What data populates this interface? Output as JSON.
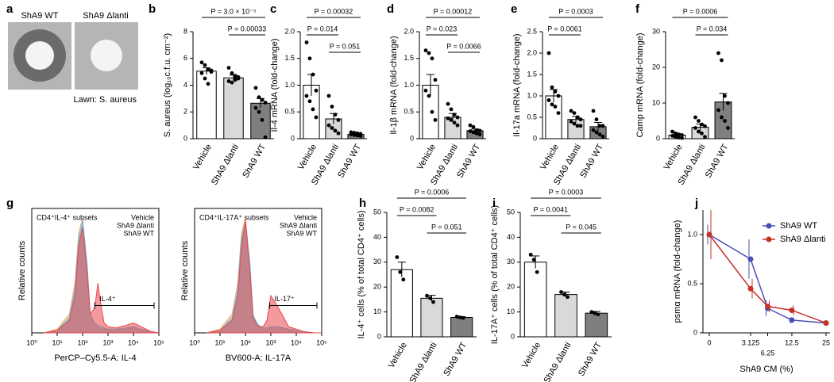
{
  "panel_a": {
    "panel": "a",
    "images": [
      "ShA9 WT",
      "ShA9 Δlanti"
    ],
    "caption": "Lawn: S. aureus"
  },
  "chart_data": [
    {
      "type": "bar",
      "panel": "b",
      "ylabel": "S. aureus (log₁₀c.f.u. cm⁻²)",
      "categories": [
        "Vehicle",
        "ShA9 Δlanti",
        "ShA9 WT"
      ],
      "values": [
        5.05,
        4.55,
        2.65
      ],
      "errors": [
        0.25,
        0.2,
        0.35
      ],
      "points": [
        [
          5.7,
          5.5,
          5.2,
          5.0,
          4.9,
          4.5,
          4.1,
          5.1
        ],
        [
          5.3,
          4.9,
          4.7,
          4.5,
          4.3,
          4.2,
          4.4,
          4.6
        ],
        [
          3.8,
          3.1,
          2.9,
          2.7,
          2.3,
          2.0,
          1.4,
          0.1
        ]
      ],
      "colors": [
        "#ffffff",
        "#d9d9d9",
        "#7f7f7f"
      ],
      "ylim": [
        0,
        8
      ],
      "yticks": [
        0,
        2,
        4,
        6,
        8
      ],
      "comparisons": [
        {
          "label": "P = 3.0 × 10⁻⁵",
          "between": [
            "Vehicle",
            "ShA9 WT"
          ]
        },
        {
          "label": "P = 0.00033",
          "between": [
            "ShA9 Δlanti",
            "ShA9 WT"
          ]
        }
      ]
    },
    {
      "type": "bar",
      "panel": "c",
      "ylabel": "Il-4 mRNA (fold-change)",
      "categories": [
        "Vehicle",
        "ShA9 Δlanti",
        "ShA9 WT"
      ],
      "values": [
        1.0,
        0.37,
        0.08
      ],
      "errors": [
        0.2,
        0.1,
        0.02
      ],
      "points": [
        [
          1.8,
          1.5,
          1.2,
          0.9,
          0.8,
          0.7,
          0.55,
          0.4
        ],
        [
          0.8,
          0.6,
          0.45,
          0.35,
          0.25,
          0.2,
          0.15,
          0.1
        ],
        [
          0.12,
          0.11,
          0.1,
          0.09,
          0.08,
          0.07,
          0.06,
          0.05
        ]
      ],
      "colors": [
        "#ffffff",
        "#d9d9d9",
        "#7f7f7f"
      ],
      "ylim": [
        0,
        2
      ],
      "yticks": [
        0,
        0.5,
        {
          "value": 1,
          "label": "1.0"
        },
        1.5,
        {
          "value": 2,
          "label": "2.0"
        }
      ],
      "comparisons": [
        {
          "label": "P = 0.00032",
          "between": [
            "Vehicle",
            "ShA9 WT"
          ]
        },
        {
          "label": "P = 0.014",
          "between": [
            "Vehicle",
            "ShA9 Δlanti"
          ]
        },
        {
          "label": "P = 0.051",
          "between": [
            "ShA9 Δlanti",
            "ShA9 WT"
          ]
        }
      ]
    },
    {
      "type": "bar",
      "panel": "d",
      "ylabel": "Il-1β mRNA (fold-change)",
      "categories": [
        "Vehicle",
        "ShA9 Δlanti",
        "ShA9 WT"
      ],
      "values": [
        1.0,
        0.4,
        0.15
      ],
      "errors": [
        0.2,
        0.07,
        0.03
      ],
      "points": [
        [
          1.65,
          1.6,
          1.5,
          1.1,
          0.9,
          0.8,
          0.5,
          0.35
        ],
        [
          0.65,
          0.55,
          0.45,
          0.4,
          0.38,
          0.35,
          0.3,
          0.25
        ],
        [
          0.25,
          0.22,
          0.16,
          0.15,
          0.14,
          0.12,
          0.1,
          0.08
        ]
      ],
      "colors": [
        "#ffffff",
        "#d9d9d9",
        "#7f7f7f"
      ],
      "ylim": [
        0,
        2
      ],
      "yticks": [
        0,
        0.5,
        {
          "value": 1,
          "label": "1.0"
        },
        1.5,
        {
          "value": 2,
          "label": "2.0"
        }
      ],
      "comparisons": [
        {
          "label": "P = 0.00012",
          "between": [
            "Vehicle",
            "ShA9 WT"
          ]
        },
        {
          "label": "P = 0.023",
          "between": [
            "Vehicle",
            "ShA9 Δlanti"
          ]
        },
        {
          "label": "P = 0.0066",
          "between": [
            "ShA9 Δlanti",
            "ShA9 WT"
          ]
        }
      ]
    },
    {
      "type": "bar",
      "panel": "e",
      "ylabel": "Il-17a mRNA (fold-change)",
      "categories": [
        "Vehicle",
        "ShA9 Δlanti",
        "ShA9 WT"
      ],
      "values": [
        1.0,
        0.45,
        0.28
      ],
      "errors": [
        0.15,
        0.07,
        0.1
      ],
      "points": [
        [
          2.0,
          1.2,
          1.1,
          1.0,
          0.9,
          0.8,
          0.75,
          0.6
        ],
        [
          0.65,
          0.6,
          0.5,
          0.45,
          0.4,
          0.35,
          0.3,
          0.3
        ],
        [
          0.65,
          0.45,
          0.3,
          0.3,
          0.2,
          0.15,
          0.1,
          0.05
        ]
      ],
      "colors": [
        "#ffffff",
        "#d9d9d9",
        "#7f7f7f"
      ],
      "ylim": [
        0,
        2.5
      ],
      "yticks": [
        0,
        0.5,
        {
          "value": 1,
          "label": "1.0"
        },
        1.5,
        {
          "value": 2,
          "label": "2.0"
        },
        2.5
      ],
      "comparisons": [
        {
          "label": "P = 0.0003",
          "between": [
            "Vehicle",
            "ShA9 WT"
          ]
        },
        {
          "label": "P = 0.0061",
          "between": [
            "Vehicle",
            "ShA9 Δlanti"
          ]
        }
      ]
    },
    {
      "type": "bar",
      "panel": "f",
      "ylabel": "Camp mRNA (fold-change)",
      "categories": [
        "Vehicle",
        "ShA9 Δlanti",
        "ShA9 WT"
      ],
      "values": [
        1.0,
        3.2,
        10.3
      ],
      "errors": [
        0.4,
        0.9,
        2.4
      ],
      "points": [
        [
          2,
          1.5,
          1.2,
          1,
          0.8,
          0.5,
          0.3,
          0.2
        ],
        [
          6,
          5,
          4,
          3.5,
          3,
          2,
          1.5,
          0.5
        ],
        [
          24,
          22,
          12,
          10,
          8,
          6,
          5,
          3
        ]
      ],
      "colors": [
        "#ffffff",
        "#d9d9d9",
        "#7f7f7f"
      ],
      "ylim": [
        0,
        30
      ],
      "yticks": [
        0,
        10,
        20,
        30
      ],
      "comparisons": [
        {
          "label": "P = 0.0006",
          "between": [
            "Vehicle",
            "ShA9 WT"
          ]
        },
        {
          "label": "P = 0.034",
          "between": [
            "ShA9 Δlanti",
            "ShA9 WT"
          ]
        }
      ]
    },
    {
      "type": "area",
      "panel": "g",
      "title": "CD4⁺IL-4⁺ subsets",
      "xlabel": "PerCP–Cy5.5-A: IL-4",
      "ylabel": "Relative counts",
      "xscale": "log",
      "x": [
        3,
        10,
        30,
        50,
        70,
        100,
        150,
        200,
        300,
        400,
        500,
        700,
        1000,
        2000,
        5000,
        10000,
        20000,
        50000,
        100000
      ],
      "series": [
        {
          "name": "Vehicle",
          "color": "#e8474c",
          "values": [
            0,
            2,
            10,
            30,
            70,
            85,
            50,
            15,
            20,
            40,
            25,
            8,
            5,
            4,
            6,
            8,
            5,
            1,
            0
          ]
        },
        {
          "name": "ShA9 Δlanti",
          "color": "#4fc3f7",
          "values": [
            0,
            2,
            12,
            35,
            75,
            90,
            55,
            15,
            8,
            6,
            5,
            4,
            3,
            3,
            4,
            5,
            3,
            1,
            0
          ]
        },
        {
          "name": "ShA9 WT",
          "color": "#f5a35b",
          "values": [
            0,
            3,
            15,
            40,
            80,
            92,
            55,
            15,
            6,
            4,
            3,
            3,
            2,
            2,
            3,
            4,
            2,
            1,
            0
          ]
        }
      ],
      "xlim": [
        1,
        100000
      ],
      "ylim": [
        0,
        100
      ],
      "xticks": [
        {
          "value": 1,
          "label": "10⁰"
        },
        {
          "value": 10,
          "label": "10¹"
        },
        {
          "value": 100,
          "label": "10²"
        },
        {
          "value": 1000,
          "label": "10³"
        },
        {
          "value": 10000,
          "label": "10⁴"
        },
        {
          "value": 100000,
          "label": "10⁵"
        }
      ],
      "gate": {
        "label": "IL-4⁺",
        "range": [
          300,
          100000
        ]
      },
      "legend": "upper right"
    },
    {
      "type": "area",
      "title": "CD4⁺IL-17A⁺ subsets",
      "xlabel": "BV600-A: IL-17A",
      "ylabel": "Relative counts",
      "xscale": "log",
      "x": [
        3,
        10,
        30,
        50,
        70,
        100,
        150,
        200,
        300,
        400,
        500,
        700,
        1000,
        2000,
        5000,
        10000,
        20000,
        50000,
        100000
      ],
      "series": [
        {
          "name": "Vehicle",
          "color": "#e8474c",
          "values": [
            0,
            2,
            10,
            30,
            70,
            90,
            50,
            12,
            6,
            5,
            5,
            10,
            30,
            20,
            5,
            3,
            1,
            0,
            0
          ]
        },
        {
          "name": "ShA9 Δlanti",
          "color": "#4fc3f7",
          "values": [
            0,
            2,
            12,
            35,
            75,
            90,
            55,
            14,
            7,
            5,
            4,
            4,
            5,
            5,
            3,
            2,
            1,
            0,
            0
          ]
        },
        {
          "name": "ShA9 WT",
          "color": "#f5a35b",
          "values": [
            0,
            3,
            15,
            40,
            80,
            92,
            55,
            15,
            6,
            4,
            3,
            3,
            4,
            4,
            3,
            2,
            1,
            0,
            0
          ]
        }
      ],
      "xlim": [
        1,
        100000
      ],
      "ylim": [
        0,
        100
      ],
      "xticks": [
        {
          "value": 1,
          "label": "10⁰"
        },
        {
          "value": 10,
          "label": "10¹"
        },
        {
          "value": 100,
          "label": "10²"
        },
        {
          "value": 1000,
          "label": "10³"
        },
        {
          "value": 10000,
          "label": "10⁴"
        },
        {
          "value": 100000,
          "label": "10⁵"
        }
      ],
      "gate": {
        "label": "IL-17⁺",
        "range": [
          900,
          100000
        ]
      },
      "legend": "upper right"
    },
    {
      "type": "bar",
      "panel": "h",
      "ylabel": "IL-4⁺ cells (% of total CD4⁺ cells)",
      "categories": [
        "Vehicle",
        "ShA9 Δlanti",
        "ShA9 WT"
      ],
      "values": [
        27,
        15.5,
        7.8
      ],
      "errors": [
        3,
        1.2,
        0.3
      ],
      "points": [
        [
          32,
          26,
          23
        ],
        [
          16.5,
          15.5,
          14
        ],
        [
          8.1,
          7.8,
          7.6
        ]
      ],
      "colors": [
        "#ffffff",
        "#d9d9d9",
        "#7f7f7f"
      ],
      "ylim": [
        0,
        50
      ],
      "yticks": [
        0,
        10,
        20,
        30,
        40,
        50
      ],
      "comparisons": [
        {
          "label": "P = 0.0006",
          "between": [
            "Vehicle",
            "ShA9 WT"
          ]
        },
        {
          "label": "P = 0.0082",
          "between": [
            "Vehicle",
            "ShA9 Δlanti"
          ]
        },
        {
          "label": "P = 0.051",
          "between": [
            "ShA9 Δlanti",
            "ShA9 WT"
          ]
        }
      ]
    },
    {
      "type": "bar",
      "panel": "i",
      "ylabel": "IL-17A⁺ cells (% of total CD4⁺ cells)",
      "categories": [
        "Vehicle",
        "ShA9 Δlanti",
        "ShA9 WT"
      ],
      "values": [
        30,
        17,
        9.5
      ],
      "errors": [
        2.5,
        1,
        0.7
      ],
      "points": [
        [
          33,
          31,
          26
        ],
        [
          18,
          17,
          16
        ],
        [
          10,
          9.5,
          9
        ]
      ],
      "colors": [
        "#ffffff",
        "#d9d9d9",
        "#7f7f7f"
      ],
      "ylim": [
        0,
        50
      ],
      "yticks": [
        0,
        10,
        20,
        30,
        40,
        50
      ],
      "comparisons": [
        {
          "label": "P = 0.0003",
          "between": [
            "Vehicle",
            "ShA9 WT"
          ]
        },
        {
          "label": "P = 0.0041",
          "between": [
            "Vehicle",
            "ShA9 Δlanti"
          ]
        },
        {
          "label": "P = 0.045",
          "between": [
            "ShA9 Δlanti",
            "ShA9 WT"
          ]
        }
      ]
    },
    {
      "type": "line",
      "panel": "j",
      "xlabel": "ShA9 CM (%)",
      "ylabel": "psmα mRNA (fold-change)",
      "xscale": "sqrt",
      "x": [
        0,
        3.125,
        6.25,
        12.5,
        25
      ],
      "series": [
        {
          "name": "ShA9 WT",
          "color": "#4a4fb5",
          "values": [
            1.0,
            0.75,
            0.25,
            0.13,
            0.1
          ],
          "errors": [
            0.1,
            0.2,
            0.08,
            0.03,
            0.01
          ]
        },
        {
          "name": "ShA9 Δlanti",
          "color": "#c8302a",
          "values": [
            1.0,
            0.45,
            0.27,
            0.23,
            0.1
          ],
          "errors": [
            0.25,
            0.1,
            0.06,
            0.05,
            0.01
          ]
        }
      ],
      "xlim": [
        0,
        25
      ],
      "ylim": [
        0,
        1.25
      ],
      "xticks": [
        0,
        3.125,
        6.25,
        12.5,
        25
      ],
      "yticks": [
        0,
        0.5,
        {
          "value": 1,
          "label": "1.0"
        }
      ],
      "legend": "upper right"
    }
  ]
}
